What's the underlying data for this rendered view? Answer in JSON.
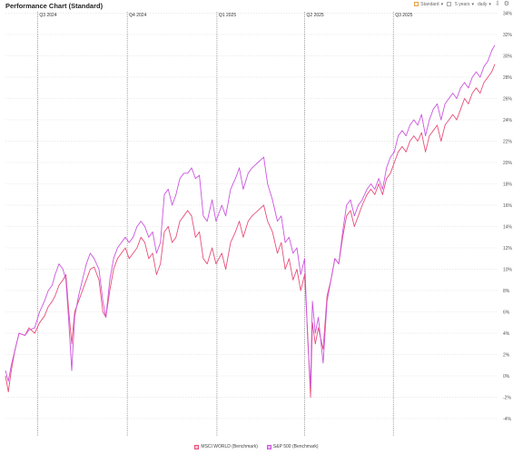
{
  "header": {
    "title": "Performance Chart (Standard)",
    "standard_label": "Standard",
    "standard_arrow": "▾",
    "period_label": "5 years",
    "period_arrow": "▾",
    "interval_label": "daily",
    "interval_arrow": "▾",
    "download_glyph": "⇩",
    "settings_glyph": "⚙"
  },
  "colors": {
    "msci": "#e84f7a",
    "sp500": "#cc55e0",
    "msci_fill": "#f4c0cf",
    "sp500_fill": "#e7b6f0",
    "grid": "#d9d9d9",
    "quarter_line": "#7a7a7a",
    "standard_box": "#e9a14a"
  },
  "chart_data": {
    "type": "line",
    "title": "Performance Chart (Standard)",
    "xlabel": "",
    "ylabel": "",
    "ylim": [
      -5,
      35
    ],
    "y_ticks": [
      -4,
      -2,
      0,
      2,
      4,
      6,
      8,
      10,
      12,
      14,
      16,
      18,
      20,
      22,
      24,
      26,
      28,
      30,
      32,
      34
    ],
    "y_tick_labels": [
      "-4%",
      "-2%",
      "0%",
      "2%",
      "4%",
      "6%",
      "8%",
      "10%",
      "12%",
      "14%",
      "16%",
      "18%",
      "20%",
      "22%",
      "24%",
      "26%",
      "28%",
      "30%",
      "32%",
      "34%"
    ],
    "y_axis_side": "right",
    "grid": true,
    "legend_position": "bottom-center",
    "x_range": [
      "2024-05-29",
      "2025-10-15"
    ],
    "quarter_markers": [
      {
        "label": "Q3 2024",
        "date": "2024-07-01"
      },
      {
        "label": "Q4 2024",
        "date": "2024-10-01"
      },
      {
        "label": "Q1 2025",
        "date": "2025-01-01"
      },
      {
        "label": "Q2 2025",
        "date": "2025-04-01"
      },
      {
        "label": "Q3 2025",
        "date": "2025-07-01"
      }
    ],
    "series": [
      {
        "name": "MSCI WORLD (Benchmark)",
        "color": "#e84f7a",
        "points": [
          [
            "2024-05-29",
            0.0
          ],
          [
            "2024-06-01",
            -1.5
          ],
          [
            "2024-06-04",
            0.5
          ],
          [
            "2024-06-08",
            2.5
          ],
          [
            "2024-06-12",
            4.0
          ],
          [
            "2024-06-18",
            3.8
          ],
          [
            "2024-06-22",
            4.5
          ],
          [
            "2024-06-28",
            4.0
          ],
          [
            "2024-07-03",
            5.0
          ],
          [
            "2024-07-08",
            5.6
          ],
          [
            "2024-07-12",
            6.5
          ],
          [
            "2024-07-16",
            7.0
          ],
          [
            "2024-07-19",
            7.5
          ],
          [
            "2024-07-23",
            8.5
          ],
          [
            "2024-07-27",
            9.0
          ],
          [
            "2024-07-30",
            9.5
          ],
          [
            "2024-08-02",
            6.0
          ],
          [
            "2024-08-05",
            3.0
          ],
          [
            "2024-08-08",
            6.0
          ],
          [
            "2024-08-12",
            7.0
          ],
          [
            "2024-08-16",
            8.0
          ],
          [
            "2024-08-20",
            9.0
          ],
          [
            "2024-08-24",
            10.0
          ],
          [
            "2024-08-28",
            10.2
          ],
          [
            "2024-09-02",
            9.0
          ],
          [
            "2024-09-06",
            6.0
          ],
          [
            "2024-09-09",
            5.5
          ],
          [
            "2024-09-13",
            8.0
          ],
          [
            "2024-09-17",
            10.0
          ],
          [
            "2024-09-21",
            11.0
          ],
          [
            "2024-09-25",
            11.5
          ],
          [
            "2024-09-29",
            12.0
          ],
          [
            "2024-10-03",
            11.0
          ],
          [
            "2024-10-07",
            11.5
          ],
          [
            "2024-10-11",
            12.0
          ],
          [
            "2024-10-15",
            13.0
          ],
          [
            "2024-10-19",
            12.5
          ],
          [
            "2024-10-23",
            11.0
          ],
          [
            "2024-10-27",
            11.5
          ],
          [
            "2024-10-31",
            9.5
          ],
          [
            "2024-11-04",
            10.5
          ],
          [
            "2024-11-08",
            13.5
          ],
          [
            "2024-11-12",
            14.0
          ],
          [
            "2024-11-16",
            12.5
          ],
          [
            "2024-11-20",
            13.0
          ],
          [
            "2024-11-24",
            14.5
          ],
          [
            "2024-11-28",
            15.0
          ],
          [
            "2024-12-02",
            15.5
          ],
          [
            "2024-12-06",
            15.0
          ],
          [
            "2024-12-10",
            13.0
          ],
          [
            "2024-12-14",
            13.5
          ],
          [
            "2024-12-18",
            11.0
          ],
          [
            "2024-12-22",
            10.5
          ],
          [
            "2024-12-27",
            12.0
          ],
          [
            "2024-12-31",
            10.5
          ],
          [
            "2025-01-06",
            11.5
          ],
          [
            "2025-01-10",
            10.0
          ],
          [
            "2025-01-15",
            12.5
          ],
          [
            "2025-01-20",
            13.5
          ],
          [
            "2025-01-24",
            14.5
          ],
          [
            "2025-01-28",
            13.0
          ],
          [
            "2025-02-02",
            14.5
          ],
          [
            "2025-02-06",
            15.0
          ],
          [
            "2025-02-12",
            15.5
          ],
          [
            "2025-02-18",
            16.0
          ],
          [
            "2025-02-22",
            14.5
          ],
          [
            "2025-02-27",
            13.5
          ],
          [
            "2025-03-04",
            11.5
          ],
          [
            "2025-03-08",
            12.5
          ],
          [
            "2025-03-12",
            10.0
          ],
          [
            "2025-03-16",
            11.0
          ],
          [
            "2025-03-20",
            9.0
          ],
          [
            "2025-03-24",
            10.0
          ],
          [
            "2025-03-28",
            8.0
          ],
          [
            "2025-04-01",
            9.5
          ],
          [
            "2025-04-04",
            4.0
          ],
          [
            "2025-04-07",
            -2.0
          ],
          [
            "2025-04-09",
            5.0
          ],
          [
            "2025-04-12",
            3.0
          ],
          [
            "2025-04-15",
            4.5
          ],
          [
            "2025-04-20",
            2.5
          ],
          [
            "2025-04-24",
            7.5
          ],
          [
            "2025-04-28",
            9.0
          ],
          [
            "2025-05-02",
            11.0
          ],
          [
            "2025-05-06",
            10.5
          ],
          [
            "2025-05-10",
            13.0
          ],
          [
            "2025-05-14",
            15.0
          ],
          [
            "2025-05-18",
            15.5
          ],
          [
            "2025-05-22",
            14.0
          ],
          [
            "2025-05-26",
            15.0
          ],
          [
            "2025-05-30",
            16.0
          ],
          [
            "2025-06-04",
            17.0
          ],
          [
            "2025-06-08",
            17.5
          ],
          [
            "2025-06-12",
            17.0
          ],
          [
            "2025-06-16",
            18.0
          ],
          [
            "2025-06-20",
            17.0
          ],
          [
            "2025-06-24",
            18.5
          ],
          [
            "2025-06-28",
            19.0
          ],
          [
            "2025-07-02",
            20.0
          ],
          [
            "2025-07-06",
            21.0
          ],
          [
            "2025-07-10",
            21.5
          ],
          [
            "2025-07-14",
            21.0
          ],
          [
            "2025-07-18",
            22.0
          ],
          [
            "2025-07-22",
            22.5
          ],
          [
            "2025-07-26",
            22.0
          ],
          [
            "2025-07-30",
            22.8
          ],
          [
            "2025-08-03",
            21.0
          ],
          [
            "2025-08-07",
            22.5
          ],
          [
            "2025-08-11",
            23.0
          ],
          [
            "2025-08-15",
            23.5
          ],
          [
            "2025-08-19",
            22.0
          ],
          [
            "2025-08-23",
            23.5
          ],
          [
            "2025-08-27",
            24.0
          ],
          [
            "2025-08-31",
            24.5
          ],
          [
            "2025-09-04",
            24.0
          ],
          [
            "2025-09-08",
            25.0
          ],
          [
            "2025-09-12",
            26.0
          ],
          [
            "2025-09-16",
            25.5
          ],
          [
            "2025-09-20",
            26.5
          ],
          [
            "2025-09-24",
            27.0
          ],
          [
            "2025-09-28",
            26.5
          ],
          [
            "2025-10-02",
            27.5
          ],
          [
            "2025-10-06",
            28.0
          ],
          [
            "2025-10-10",
            28.5
          ],
          [
            "2025-10-13",
            29.2
          ]
        ]
      },
      {
        "name": "S&P 500 (Benchmark)",
        "color": "#cc55e0",
        "points": [
          [
            "2024-05-29",
            0.5
          ],
          [
            "2024-06-01",
            -0.5
          ],
          [
            "2024-06-04",
            1.0
          ],
          [
            "2024-06-08",
            2.5
          ],
          [
            "2024-06-12",
            4.0
          ],
          [
            "2024-06-18",
            3.8
          ],
          [
            "2024-06-22",
            4.3
          ],
          [
            "2024-06-28",
            4.5
          ],
          [
            "2024-07-03",
            6.0
          ],
          [
            "2024-07-08",
            7.0
          ],
          [
            "2024-07-12",
            8.0
          ],
          [
            "2024-07-16",
            8.5
          ],
          [
            "2024-07-19",
            9.5
          ],
          [
            "2024-07-23",
            10.5
          ],
          [
            "2024-07-27",
            10.0
          ],
          [
            "2024-07-30",
            9.0
          ],
          [
            "2024-08-02",
            5.0
          ],
          [
            "2024-08-05",
            0.5
          ],
          [
            "2024-08-08",
            5.5
          ],
          [
            "2024-08-12",
            7.5
          ],
          [
            "2024-08-16",
            9.0
          ],
          [
            "2024-08-20",
            10.5
          ],
          [
            "2024-08-24",
            11.5
          ],
          [
            "2024-08-28",
            11.0
          ],
          [
            "2024-09-02",
            10.0
          ],
          [
            "2024-09-06",
            7.0
          ],
          [
            "2024-09-09",
            5.5
          ],
          [
            "2024-09-13",
            9.0
          ],
          [
            "2024-09-17",
            11.0
          ],
          [
            "2024-09-21",
            12.0
          ],
          [
            "2024-09-25",
            12.5
          ],
          [
            "2024-09-29",
            13.0
          ],
          [
            "2024-10-03",
            12.5
          ],
          [
            "2024-10-07",
            13.0
          ],
          [
            "2024-10-11",
            14.0
          ],
          [
            "2024-10-15",
            14.5
          ],
          [
            "2024-10-19",
            14.0
          ],
          [
            "2024-10-23",
            13.0
          ],
          [
            "2024-10-27",
            13.5
          ],
          [
            "2024-10-31",
            11.5
          ],
          [
            "2024-11-04",
            12.5
          ],
          [
            "2024-11-08",
            17.0
          ],
          [
            "2024-11-12",
            17.5
          ],
          [
            "2024-11-16",
            16.0
          ],
          [
            "2024-11-20",
            17.0
          ],
          [
            "2024-11-24",
            18.5
          ],
          [
            "2024-11-28",
            19.0
          ],
          [
            "2024-12-02",
            19.0
          ],
          [
            "2024-12-06",
            19.5
          ],
          [
            "2024-12-10",
            18.5
          ],
          [
            "2024-12-14",
            18.8
          ],
          [
            "2024-12-18",
            15.0
          ],
          [
            "2024-12-22",
            14.5
          ],
          [
            "2024-12-27",
            16.5
          ],
          [
            "2024-12-31",
            14.5
          ],
          [
            "2025-01-06",
            16.0
          ],
          [
            "2025-01-10",
            15.0
          ],
          [
            "2025-01-15",
            17.5
          ],
          [
            "2025-01-20",
            18.5
          ],
          [
            "2025-01-24",
            19.5
          ],
          [
            "2025-01-28",
            17.5
          ],
          [
            "2025-02-02",
            19.0
          ],
          [
            "2025-02-06",
            19.5
          ],
          [
            "2025-02-12",
            20.0
          ],
          [
            "2025-02-18",
            20.5
          ],
          [
            "2025-02-22",
            18.0
          ],
          [
            "2025-02-27",
            16.5
          ],
          [
            "2025-03-04",
            14.5
          ],
          [
            "2025-03-08",
            15.0
          ],
          [
            "2025-03-12",
            12.5
          ],
          [
            "2025-03-16",
            13.0
          ],
          [
            "2025-03-20",
            11.5
          ],
          [
            "2025-03-24",
            12.0
          ],
          [
            "2025-03-28",
            9.5
          ],
          [
            "2025-04-01",
            11.0
          ],
          [
            "2025-04-04",
            3.5
          ],
          [
            "2025-04-07",
            -1.0
          ],
          [
            "2025-04-09",
            7.0
          ],
          [
            "2025-04-12",
            4.0
          ],
          [
            "2025-04-15",
            5.5
          ],
          [
            "2025-04-20",
            1.2
          ],
          [
            "2025-04-24",
            7.0
          ],
          [
            "2025-04-28",
            9.0
          ],
          [
            "2025-05-02",
            11.0
          ],
          [
            "2025-05-06",
            10.5
          ],
          [
            "2025-05-10",
            13.5
          ],
          [
            "2025-05-14",
            16.0
          ],
          [
            "2025-05-18",
            16.5
          ],
          [
            "2025-05-22",
            15.0
          ],
          [
            "2025-05-26",
            16.0
          ],
          [
            "2025-05-30",
            16.5
          ],
          [
            "2025-06-04",
            17.5
          ],
          [
            "2025-06-08",
            18.0
          ],
          [
            "2025-06-12",
            17.5
          ],
          [
            "2025-06-16",
            18.5
          ],
          [
            "2025-06-20",
            17.5
          ],
          [
            "2025-06-24",
            19.5
          ],
          [
            "2025-06-28",
            20.5
          ],
          [
            "2025-07-02",
            21.0
          ],
          [
            "2025-07-06",
            22.5
          ],
          [
            "2025-07-10",
            23.0
          ],
          [
            "2025-07-14",
            22.5
          ],
          [
            "2025-07-18",
            23.5
          ],
          [
            "2025-07-22",
            24.0
          ],
          [
            "2025-07-26",
            23.5
          ],
          [
            "2025-07-30",
            24.5
          ],
          [
            "2025-08-03",
            22.5
          ],
          [
            "2025-08-07",
            24.0
          ],
          [
            "2025-08-11",
            25.0
          ],
          [
            "2025-08-15",
            25.5
          ],
          [
            "2025-08-19",
            24.0
          ],
          [
            "2025-08-23",
            25.5
          ],
          [
            "2025-08-27",
            26.0
          ],
          [
            "2025-08-31",
            26.5
          ],
          [
            "2025-09-04",
            26.0
          ],
          [
            "2025-09-08",
            27.0
          ],
          [
            "2025-09-12",
            27.5
          ],
          [
            "2025-09-16",
            27.0
          ],
          [
            "2025-09-20",
            28.0
          ],
          [
            "2025-09-24",
            28.5
          ],
          [
            "2025-09-28",
            28.0
          ],
          [
            "2025-10-02",
            29.0
          ],
          [
            "2025-10-06",
            29.5
          ],
          [
            "2025-10-10",
            30.5
          ],
          [
            "2025-10-13",
            31.0
          ]
        ]
      }
    ]
  }
}
